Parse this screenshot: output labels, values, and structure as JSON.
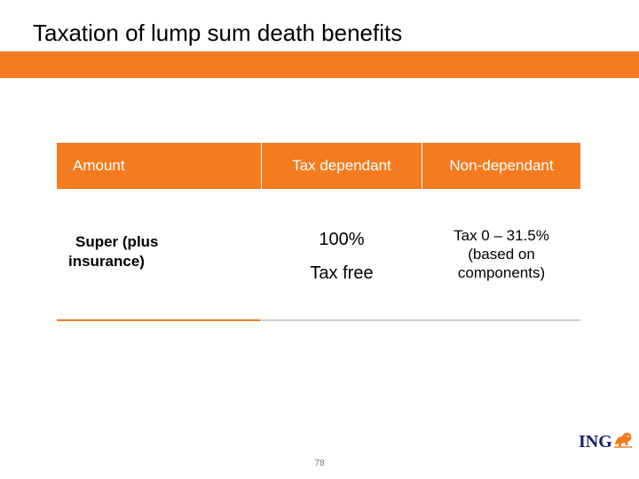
{
  "title": "Taxation of lump sum death benefits",
  "table": {
    "headers": [
      "Amount",
      "Tax dependant",
      "Non-dependant"
    ],
    "row": {
      "amount_line1": "Super (plus",
      "amount_line2": "insurance)",
      "tax_dependant_line1": "100%",
      "tax_dependant_line2": "Tax free",
      "non_dependant_line1": "Tax 0 – 31.5%",
      "non_dependant_line2": "(based on",
      "non_dependant_line3": "components)"
    }
  },
  "footer": {
    "page_number": "78",
    "logo_text": "ING",
    "logo_icon": "lion-icon"
  },
  "colors": {
    "accent": "#f47b20",
    "header_text": "#ffffff",
    "divider": "#c8ccd6",
    "logo_blue": "#16226b"
  }
}
